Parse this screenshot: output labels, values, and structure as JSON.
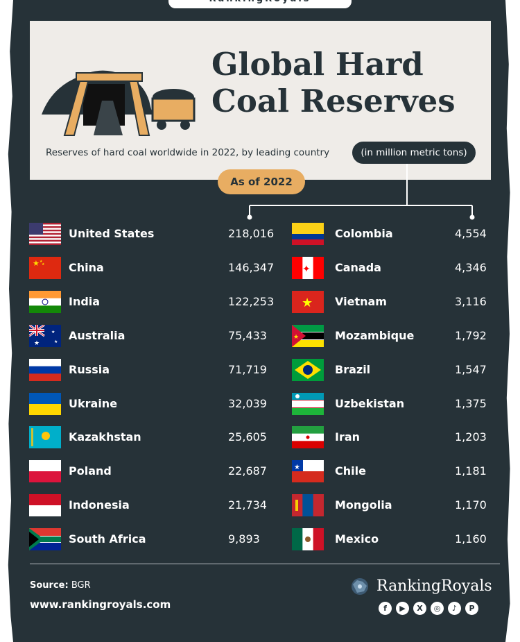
{
  "brand_top": "RankingRoyals",
  "header": {
    "title_line1": "Global Hard",
    "title_line2": "Coal Reserves",
    "subtitle": "Reserves of hard coal worldwide in 2022, by leading country",
    "unit": "(in million metric tons)",
    "as_of": "As of 2022"
  },
  "chart_data": {
    "type": "table",
    "title": "Global Hard Coal Reserves",
    "subtitle": "Reserves of hard coal worldwide in 2022, by leading country",
    "unit": "(in million metric tons)",
    "as_of": "As of 2022",
    "rows": [
      {
        "country": "United States",
        "value": 218016,
        "label": "218,016",
        "flag": "flag-usa"
      },
      {
        "country": "China",
        "value": 146347,
        "label": "146,347",
        "flag": "flag-china"
      },
      {
        "country": "India",
        "value": 122253,
        "label": "122,253",
        "flag": "flag-india"
      },
      {
        "country": "Australia",
        "value": 75433,
        "label": "75,433",
        "flag": "flag-australia"
      },
      {
        "country": "Russia",
        "value": 71719,
        "label": "71,719",
        "flag": "flag-russia"
      },
      {
        "country": "Ukraine",
        "value": 32039,
        "label": "32,039",
        "flag": "flag-ukraine"
      },
      {
        "country": "Kazakhstan",
        "value": 25605,
        "label": "25,605",
        "flag": "flag-kazakhstan"
      },
      {
        "country": "Poland",
        "value": 22687,
        "label": "22,687",
        "flag": "flag-poland"
      },
      {
        "country": "Indonesia",
        "value": 21734,
        "label": "21,734",
        "flag": "flag-indonesia"
      },
      {
        "country": "South Africa",
        "value": 9893,
        "label": "9,893",
        "flag": "flag-south-africa"
      },
      {
        "country": "Colombia",
        "value": 4554,
        "label": "4,554",
        "flag": "flag-colombia"
      },
      {
        "country": "Canada",
        "value": 4346,
        "label": "4,346",
        "flag": "flag-canada"
      },
      {
        "country": "Vietnam",
        "value": 3116,
        "label": "3,116",
        "flag": "flag-vietnam"
      },
      {
        "country": "Mozambique",
        "value": 1792,
        "label": "1,792",
        "flag": "flag-mozambique"
      },
      {
        "country": "Brazil",
        "value": 1547,
        "label": "1,547",
        "flag": "flag-brazil"
      },
      {
        "country": "Uzbekistan",
        "value": 1375,
        "label": "1,375",
        "flag": "flag-uzbekistan"
      },
      {
        "country": "Iran",
        "value": 1203,
        "label": "1,203",
        "flag": "flag-iran"
      },
      {
        "country": "Chile",
        "value": 1181,
        "label": "1,181",
        "flag": "flag-chile"
      },
      {
        "country": "Mongolia",
        "value": 1170,
        "label": "1,170",
        "flag": "flag-mongolia"
      },
      {
        "country": "Mexico",
        "value": 1160,
        "label": "1,160",
        "flag": "flag-mexico"
      }
    ]
  },
  "footer": {
    "source_label": "Source:",
    "source_value": "BGR",
    "website": "www.rankingroyals.com",
    "brand": "RankingRoyals",
    "social_icons": [
      "facebook-icon",
      "youtube-icon",
      "x-icon",
      "instagram-icon",
      "tiktok-icon",
      "pinterest-icon"
    ]
  },
  "colors": {
    "background": "#263238",
    "header_panel": "#efece8",
    "as_of_pill": "#e8ad62",
    "text_light": "#ffffff",
    "text_dark": "#263238"
  }
}
